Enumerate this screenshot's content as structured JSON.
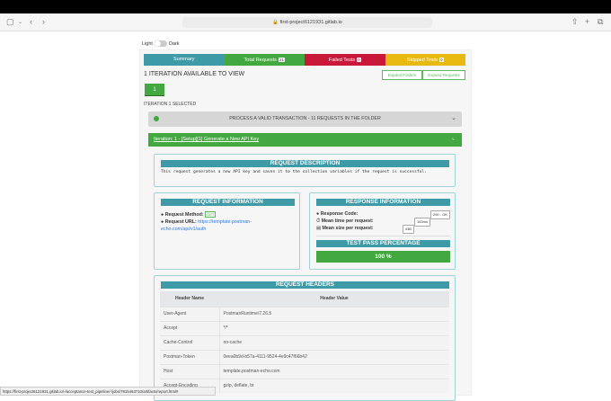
{
  "browser": {
    "url": "first-project6121931.gitlab.io",
    "status_url": "https://first-project6121931.gitlab.io/-/acceptance-test_pipeline/-/jobs/7815463710/artifacts/report.html#"
  },
  "theme": {
    "light": "Light",
    "dark": "Dark"
  },
  "tabs": [
    {
      "label": "Summary",
      "color": "#3d9aa6"
    },
    {
      "label": "Total Requests",
      "badge": "21",
      "color": "#43a83f"
    },
    {
      "label": "Failed Tests",
      "badge": "0",
      "color": "#c9183a"
    },
    {
      "label": "Skipped Tests",
      "badge": "0",
      "color": "#e8b911"
    }
  ],
  "iteration_title": "1 ITERATION AVAILABLE TO VIEW",
  "expand_folders": "Expand Folders",
  "expand_requests": "Expand Requests",
  "iteration_button": "1",
  "iteration_selected": "ITERATION 1 SELECTED",
  "folder": {
    "title": "PROCESS A VALID TRANSACTION - 11 REQUESTS IN THE FOLDER"
  },
  "request": {
    "title": "Iteration: 1 - [Setup][1] Generate a New API Key"
  },
  "description": {
    "header": "REQUEST DESCRIPTION",
    "text": "This request generates a new API key and saves it to the collection variables if the request is successful."
  },
  "request_info": {
    "header": "REQUEST INFORMATION",
    "method_label": "Request Method:",
    "method": "GET",
    "url_label": "Request URL:",
    "url": "https://template.postman-echo.com/api/v1/auth"
  },
  "response_info": {
    "header": "RESPONSE INFORMATION",
    "code_label": "Response Code:",
    "code": "200 - OK",
    "time_label": "Mean time per request:",
    "time": "153ms",
    "size_label": "Mean size per request:",
    "size": "43B"
  },
  "pass": {
    "header": "TEST PASS PERCENTAGE",
    "value": "100 %",
    "percent": 100
  },
  "headers": {
    "header": "REQUEST HEADERS",
    "columns": [
      "Header Name",
      "Header Value"
    ],
    "rows": [
      [
        "User-Agent",
        "PostmanRuntime/7.26.5"
      ],
      [
        "Accept",
        "*/*"
      ],
      [
        "Cache-Control",
        "no-cache"
      ],
      [
        "Postman-Token",
        "0eea0b9d-b57a-4111-9524-4e9c47f66b42"
      ],
      [
        "Host",
        "template.postman-echo.com"
      ],
      [
        "Accept-Encoding",
        "gzip, deflate, br"
      ]
    ]
  }
}
